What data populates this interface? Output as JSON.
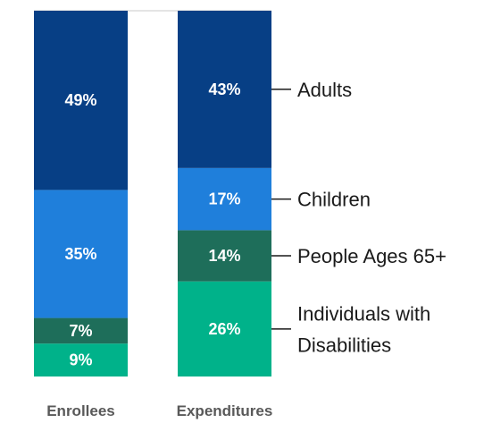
{
  "chart_data": {
    "type": "bar",
    "stacked": true,
    "percent": true,
    "categories": [
      "Enrollees",
      "Expenditures"
    ],
    "series": [
      {
        "name": "Individuals with Disabilities",
        "values": [
          9,
          26
        ],
        "labels": [
          "9%",
          "26%"
        ],
        "color": "#00b28a"
      },
      {
        "name": "People Ages 65+",
        "values": [
          7,
          14
        ],
        "labels": [
          "7%",
          "14%"
        ],
        "color": "#1e6e5a"
      },
      {
        "name": "Children",
        "values": [
          35,
          17
        ],
        "labels": [
          "35%",
          "17%"
        ],
        "color": "#1f7fdb"
      },
      {
        "name": "Adults",
        "values": [
          49,
          43
        ],
        "labels": [
          "49%",
          "43%"
        ],
        "color": "#073f85"
      }
    ],
    "legend": {
      "placement": "right",
      "entries": [
        {
          "series": "Adults",
          "lines": [
            "Adults"
          ]
        },
        {
          "series": "Children",
          "lines": [
            "Children"
          ]
        },
        {
          "series": "People Ages 65+",
          "lines": [
            "People Ages 65+"
          ]
        },
        {
          "series": "Individuals with Disabilities",
          "lines": [
            "Individuals with",
            "Disabilities"
          ]
        }
      ]
    },
    "ylim": [
      0,
      100
    ],
    "grid": false
  }
}
